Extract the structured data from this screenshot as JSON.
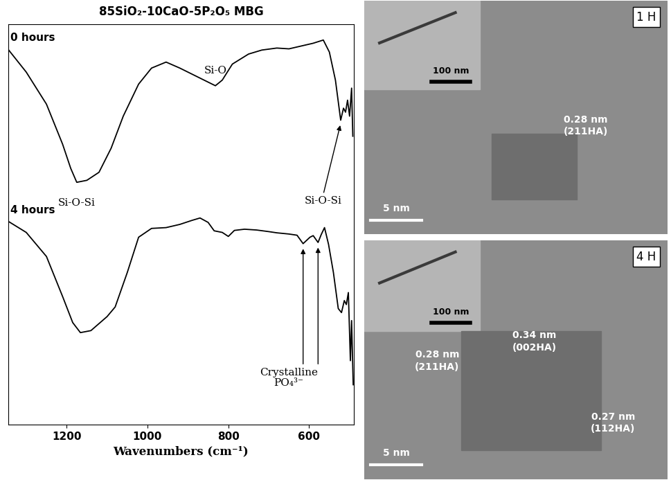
{
  "chart_data": {
    "type": "line",
    "title": "85SiO₂-10CaO-5P₂O₅ MBG",
    "x_label": "Wavenumbers (cm⁻¹)",
    "xlim": [
      1345,
      490
    ],
    "xticks": [
      1200,
      1000,
      800,
      600
    ],
    "ylim": [
      0,
      100
    ],
    "tick_labels": "x",
    "series": [
      {
        "name": "0 hours",
        "color": "#000000",
        "x": [
          1345,
          1300,
          1250,
          1210,
          1190,
          1175,
          1150,
          1120,
          1090,
          1060,
          1022,
          990,
          954,
          920,
          880,
          850,
          832,
          815,
          790,
          750,
          717,
          680,
          650,
          620,
          590,
          565,
          550,
          535,
          522,
          515,
          510,
          505,
          500,
          495,
          492
        ],
        "values": [
          93.7,
          88,
          80,
          70,
          64,
          60.5,
          61,
          63,
          69,
          77,
          85,
          89,
          90.5,
          89,
          87,
          85.5,
          84.6,
          86,
          90,
          92.5,
          93.5,
          94,
          93.8,
          94.5,
          95.2,
          96,
          93,
          86,
          76,
          79,
          78,
          81,
          77,
          84,
          72
        ]
      },
      {
        "name": "4 hours",
        "color": "#000000",
        "x": [
          1345,
          1300,
          1250,
          1210,
          1185,
          1166,
          1140,
          1100,
          1080,
          1050,
          1022,
          990,
          954,
          920,
          890,
          870,
          850,
          835,
          815,
          800,
          785,
          760,
          730,
          700,
          680,
          650,
          630,
          615,
          598,
          590,
          578,
          570,
          562,
          552,
          540,
          528,
          520,
          513,
          508,
          503,
          498,
          495,
          491
        ],
        "values": [
          50.8,
          48,
          42,
          32,
          25.5,
          23,
          23.5,
          27,
          29.4,
          38,
          46.8,
          49,
          49.2,
          50,
          51,
          51.6,
          50.5,
          48.4,
          48,
          47,
          48.5,
          48.8,
          48.6,
          48.2,
          47.9,
          47.6,
          47.3,
          45.2,
          46.8,
          47.2,
          45.5,
          47.5,
          49.2,
          45,
          38,
          29,
          28,
          31,
          30,
          33,
          16,
          26,
          10
        ]
      }
    ],
    "annotations": [
      {
        "text": "Si-O-Si",
        "points": [
          [
            1175,
            60.5
          ]
        ]
      },
      {
        "text": "Si-O",
        "points": [
          [
            832,
            84.6
          ]
        ]
      },
      {
        "text": "Si-O-Si",
        "points": [
          [
            522,
            76
          ]
        ]
      },
      {
        "text": "Crystalline\nPO₄³⁻",
        "points": [
          [
            615,
            45.2
          ],
          [
            578,
            45.5
          ]
        ]
      }
    ]
  },
  "panels": [
    {
      "label": "1 H",
      "scale_bars": [
        "100 nm",
        "5 nm"
      ],
      "lattice": [
        {
          "spacing": "0.28 nm",
          "plane": "(211HA)"
        }
      ]
    },
    {
      "label": "4 H",
      "scale_bars": [
        "100 nm",
        "5 nm"
      ],
      "lattice": [
        {
          "spacing": "0.28 nm",
          "plane": "(211HA)"
        },
        {
          "spacing": "0.34 nm",
          "plane": "(002HA)"
        },
        {
          "spacing": "0.27 nm",
          "plane": "(112HA)"
        }
      ]
    }
  ]
}
